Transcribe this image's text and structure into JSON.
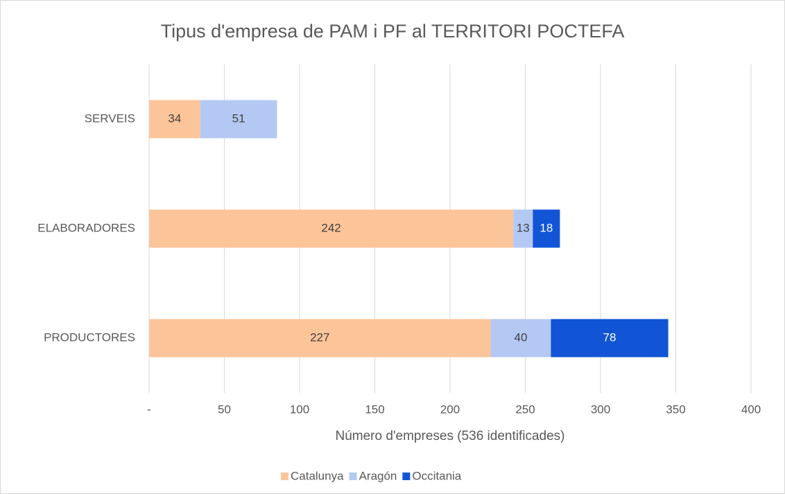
{
  "chart_data": {
    "type": "stacked-bar-horizontal",
    "title": "Tipus d'empresa de PAM i PF al TERRITORI POCTEFA",
    "x_label": "Número d'empreses (536 identificades)",
    "categories": [
      "SERVEIS",
      "ELABORADORES",
      "PRODUCTORES"
    ],
    "series": [
      {
        "name": "Catalunya",
        "color": "#fcc499",
        "values": [
          34,
          242,
          227
        ]
      },
      {
        "name": "Aragón",
        "color": "#b4c8f4",
        "values": [
          51,
          13,
          40
        ]
      },
      {
        "name": "Occitania",
        "color": "#1155d6",
        "values": [
          null,
          18,
          78
        ]
      }
    ],
    "xlim": [
      0,
      400
    ],
    "xticks": [
      {
        "value": 0,
        "label": "-"
      },
      50,
      100,
      150,
      200,
      250,
      300,
      350,
      400
    ],
    "grid": true,
    "legend": "bottom"
  }
}
